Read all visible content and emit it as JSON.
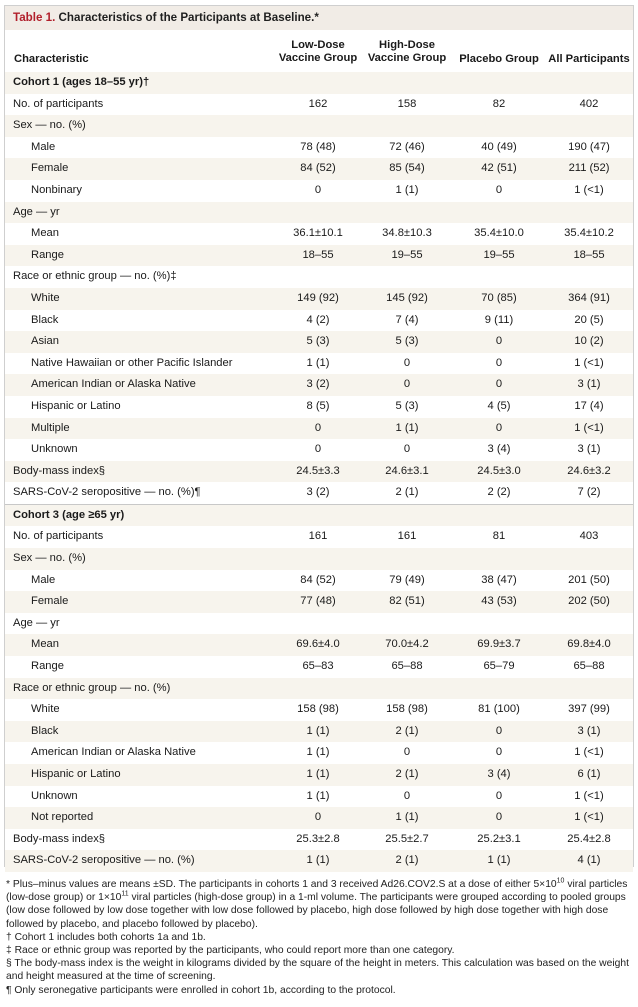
{
  "table": {
    "number": "Table 1.",
    "title": "Characteristics of the Participants at Baseline.*",
    "columns": [
      "Characteristic",
      "Low-Dose\nVaccine Group",
      "High-Dose\nVaccine Group",
      "Placebo Group",
      "All Participants"
    ],
    "col_label_lines": {
      "c0": "Characteristic",
      "c1a": "Low-Dose",
      "c1b": "Vaccine Group",
      "c2a": "High-Dose",
      "c2b": "Vaccine Group",
      "c3": "Placebo Group",
      "c4": "All Participants"
    },
    "rows": [
      {
        "label": "Cohort 1 (ages 18–55 yr)†",
        "kind": "cohort",
        "values": [
          "",
          "",
          "",
          ""
        ]
      },
      {
        "label": "No. of participants",
        "kind": "l0",
        "values": [
          "162",
          "158",
          "82",
          "402"
        ]
      },
      {
        "label": "Sex — no. (%)",
        "kind": "l0",
        "values": [
          "",
          "",
          "",
          ""
        ]
      },
      {
        "label": "Male",
        "kind": "l1",
        "values": [
          "78 (48)",
          "72 (46)",
          "40 (49)",
          "190 (47)"
        ]
      },
      {
        "label": "Female",
        "kind": "l1",
        "values": [
          "84 (52)",
          "85 (54)",
          "42 (51)",
          "211 (52)"
        ]
      },
      {
        "label": "Nonbinary",
        "kind": "l1",
        "values": [
          "0",
          "1 (1)",
          "0",
          "1 (<1)"
        ]
      },
      {
        "label": "Age — yr",
        "kind": "l0",
        "values": [
          "",
          "",
          "",
          ""
        ]
      },
      {
        "label": "Mean",
        "kind": "l1",
        "values": [
          "36.1±10.1",
          "34.8±10.3",
          "35.4±10.0",
          "35.4±10.2"
        ]
      },
      {
        "label": "Range",
        "kind": "l1",
        "values": [
          "18–55",
          "19–55",
          "19–55",
          "18–55"
        ]
      },
      {
        "label": "Race or ethnic group — no. (%)‡",
        "kind": "l0",
        "values": [
          "",
          "",
          "",
          ""
        ]
      },
      {
        "label": "White",
        "kind": "l1",
        "values": [
          "149 (92)",
          "145 (92)",
          "70 (85)",
          "364 (91)"
        ]
      },
      {
        "label": "Black",
        "kind": "l1",
        "values": [
          "4 (2)",
          "7 (4)",
          "9 (11)",
          "20 (5)"
        ]
      },
      {
        "label": "Asian",
        "kind": "l1",
        "values": [
          "5 (3)",
          "5 (3)",
          "0",
          "10 (2)"
        ]
      },
      {
        "label": "Native Hawaiian or other Pacific Islander",
        "kind": "l1",
        "values": [
          "1 (1)",
          "0",
          "0",
          "1 (<1)"
        ]
      },
      {
        "label": "American Indian or Alaska Native",
        "kind": "l1",
        "values": [
          "3 (2)",
          "0",
          "0",
          "3 (1)"
        ]
      },
      {
        "label": "Hispanic or Latino",
        "kind": "l1",
        "values": [
          "8 (5)",
          "5 (3)",
          "4 (5)",
          "17 (4)"
        ]
      },
      {
        "label": "Multiple",
        "kind": "l1",
        "values": [
          "0",
          "1 (1)",
          "0",
          "1 (<1)"
        ]
      },
      {
        "label": "Unknown",
        "kind": "l1",
        "values": [
          "0",
          "0",
          "3 (4)",
          "3 (1)"
        ]
      },
      {
        "label": "Body-mass index§",
        "kind": "l0",
        "values": [
          "24.5±3.3",
          "24.6±3.1",
          "24.5±3.0",
          "24.6±3.2"
        ]
      },
      {
        "label": "SARS-CoV-2 seropositive — no. (%)¶",
        "kind": "l0",
        "values": [
          "3 (2)",
          "2 (1)",
          "2 (2)",
          "7 (2)"
        ]
      },
      {
        "label": "Cohort 3 (age ≥65 yr)",
        "kind": "cohort",
        "values": [
          "",
          "",
          "",
          ""
        ]
      },
      {
        "label": "No. of participants",
        "kind": "l0",
        "values": [
          "161",
          "161",
          "81",
          "403"
        ]
      },
      {
        "label": "Sex — no. (%)",
        "kind": "l0",
        "values": [
          "",
          "",
          "",
          ""
        ]
      },
      {
        "label": "Male",
        "kind": "l1",
        "values": [
          "84 (52)",
          "79 (49)",
          "38 (47)",
          "201 (50)"
        ]
      },
      {
        "label": "Female",
        "kind": "l1",
        "values": [
          "77 (48)",
          "82 (51)",
          "43 (53)",
          "202 (50)"
        ]
      },
      {
        "label": "Age — yr",
        "kind": "l0",
        "values": [
          "",
          "",
          "",
          ""
        ]
      },
      {
        "label": "Mean",
        "kind": "l1",
        "values": [
          "69.6±4.0",
          "70.0±4.2",
          "69.9±3.7",
          "69.8±4.0"
        ]
      },
      {
        "label": "Range",
        "kind": "l1",
        "values": [
          "65–83",
          "65–88",
          "65–79",
          "65–88"
        ]
      },
      {
        "label": "Race or ethnic group — no. (%)",
        "kind": "l0",
        "values": [
          "",
          "",
          "",
          ""
        ]
      },
      {
        "label": "White",
        "kind": "l1",
        "values": [
          "158 (98)",
          "158 (98)",
          "81 (100)",
          "397 (99)"
        ]
      },
      {
        "label": "Black",
        "kind": "l1",
        "values": [
          "1 (1)",
          "2 (1)",
          "0",
          "3 (1)"
        ]
      },
      {
        "label": "American Indian or Alaska Native",
        "kind": "l1",
        "values": [
          "1 (1)",
          "0",
          "0",
          "1 (<1)"
        ]
      },
      {
        "label": "Hispanic or Latino",
        "kind": "l1",
        "values": [
          "1 (1)",
          "2 (1)",
          "3 (4)",
          "6 (1)"
        ]
      },
      {
        "label": "Unknown",
        "kind": "l1",
        "values": [
          "1 (1)",
          "0",
          "0",
          "1 (<1)"
        ]
      },
      {
        "label": "Not reported",
        "kind": "l1",
        "values": [
          "0",
          "1 (1)",
          "0",
          "1 (<1)"
        ]
      },
      {
        "label": "Body-mass index§",
        "kind": "l0",
        "values": [
          "25.3±2.8",
          "25.5±2.7",
          "25.2±3.1",
          "25.4±2.8"
        ]
      },
      {
        "label": "SARS-CoV-2 seropositive — no. (%)",
        "kind": "l0",
        "values": [
          "1 (1)",
          "2 (1)",
          "1 (1)",
          "4 (1)"
        ]
      }
    ]
  },
  "footnotes": {
    "star_a": "* Plus–minus values are means ±SD. The participants in cohorts 1 and 3 received Ad26.COV2.S at a dose of either 5×10",
    "star_exp1": "10",
    "star_b": " viral particles (low-dose group) or 1×10",
    "star_exp2": "11",
    "star_c": " viral particles (high-dose group) in a 1-ml volume. The participants were grouped according to pooled groups (low dose followed by low dose together with low dose followed by placebo, high dose followed by high dose together with high dose followed by placebo, and placebo followed by placebo).",
    "dagger": "† Cohort 1 includes both cohorts 1a and 1b.",
    "ddagger": "‡ Race or ethnic group was reported by the participants, who could report more than one category.",
    "section": "§ The body-mass index is the weight in kilograms divided by the square of the height in meters. This calculation was based on the weight and height measured at the time of screening.",
    "pilcrow": "¶ Only seronegative participants were enrolled in cohort 1b, according to the protocol."
  }
}
